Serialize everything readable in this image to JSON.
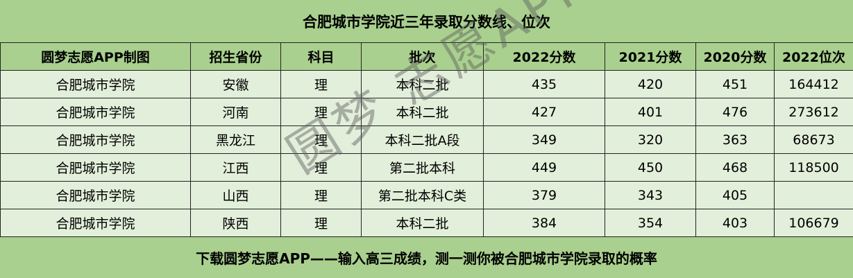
{
  "title": "合肥城市学院近三年录取分数线、位次",
  "headers": [
    "圆梦志愿APP制图",
    "招生省份",
    "科目",
    "批次",
    "2022分数",
    "2021分数",
    "2020分数",
    "2022位次"
  ],
  "rows": [
    [
      "合肥城市学院",
      "安徽",
      "理",
      "本科二批",
      "435",
      "420",
      "451",
      "164412"
    ],
    [
      "合肥城市学院",
      "河南",
      "理",
      "本科二批",
      "427",
      "401",
      "476",
      "273612"
    ],
    [
      "合肥城市学院",
      "黑龙江",
      "理",
      "本科二批A段",
      "349",
      "320",
      "363",
      "68673"
    ],
    [
      "合肥城市学院",
      "江西",
      "理",
      "第二批本科",
      "449",
      "450",
      "468",
      "118500"
    ],
    [
      "合肥城市学院",
      "山西",
      "理",
      "第二批本科C类",
      "379",
      "343",
      "405",
      ""
    ],
    [
      "合肥城市学院",
      "陕西",
      "理",
      "本科二批",
      "384",
      "354",
      "403",
      "106679"
    ]
  ],
  "footer": "下载圆梦志愿APP——输入高三成绩，测一测你被合肥城市学院录取的概率",
  "watermark": "圆梦志愿APP",
  "colors": {
    "header_bg": "#a9d08e",
    "row_bg": "#e2efda"
  }
}
